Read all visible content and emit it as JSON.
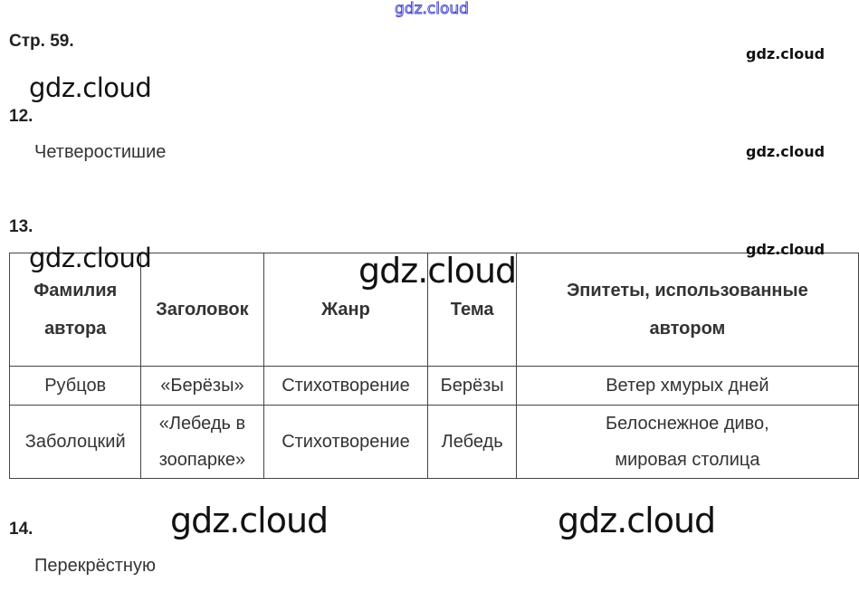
{
  "watermark": "gdz.cloud",
  "page_label": "Стр. 59.",
  "tasks": [
    {
      "number": "12.",
      "answer": "Четверостишие"
    },
    {
      "number": "13."
    },
    {
      "number": "14.",
      "answer": "Перекрёстную"
    }
  ],
  "table": {
    "headers": [
      "Фамилия автора",
      "Заголовок",
      "Жанр",
      "Тема",
      "Эпитеты, использованные автором"
    ],
    "rows": [
      [
        "Рубцов",
        "«Берёзы»",
        "Стихотворение",
        "Берёзы",
        "Ветер хмурых дней"
      ],
      [
        "Заболоцкий",
        "«Лебедь в зоопарке»",
        "Стихотворение",
        "Лебедь",
        "Белоснежное диво, мировая столица"
      ]
    ]
  }
}
